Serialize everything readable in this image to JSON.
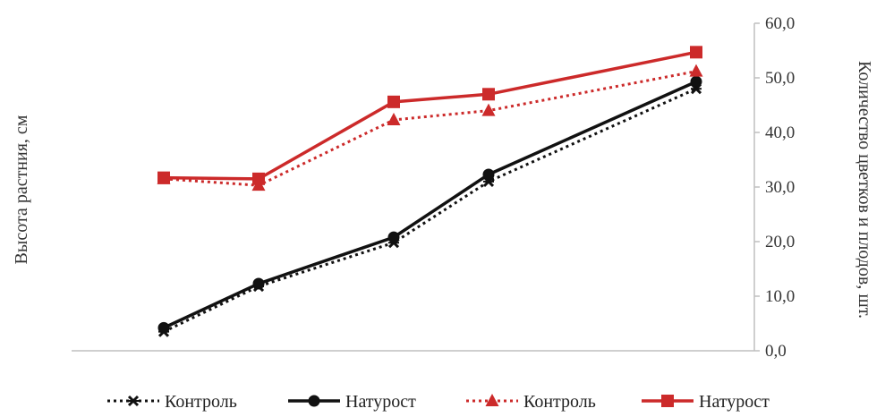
{
  "chart_data": {
    "type": "line",
    "x": [
      1,
      2,
      3,
      4,
      5
    ],
    "ylabel_left": "Высота растния, см",
    "ylabel_right": "Количество цветков и плодов, шт.",
    "ylim": [
      0,
      60
    ],
    "y_ticks": [
      "0,0",
      "10,0",
      "20,0",
      "30,0",
      "40,0",
      "50,0",
      "60,0"
    ],
    "grid": false,
    "legend_position": "bottom",
    "series": [
      {
        "name": "Контроль",
        "color": "#111111",
        "line": "dotted",
        "marker": "x",
        "values": [
          3.5,
          11.8,
          19.8,
          31.0,
          48.0
        ]
      },
      {
        "name": "Натуроcт",
        "color": "#111111",
        "line": "solid",
        "marker": "circle",
        "values": [
          4.2,
          12.3,
          20.8,
          32.3,
          49.3
        ]
      },
      {
        "name": "Контроль",
        "color": "#cc2a2a",
        "line": "dotted",
        "marker": "triangle",
        "values": [
          31.5,
          30.3,
          42.3,
          44.0,
          51.2
        ]
      },
      {
        "name": "Натуроcт",
        "color": "#cc2a2a",
        "line": "solid",
        "marker": "square",
        "values": [
          31.7,
          31.5,
          45.6,
          47.0,
          54.7
        ]
      }
    ]
  }
}
